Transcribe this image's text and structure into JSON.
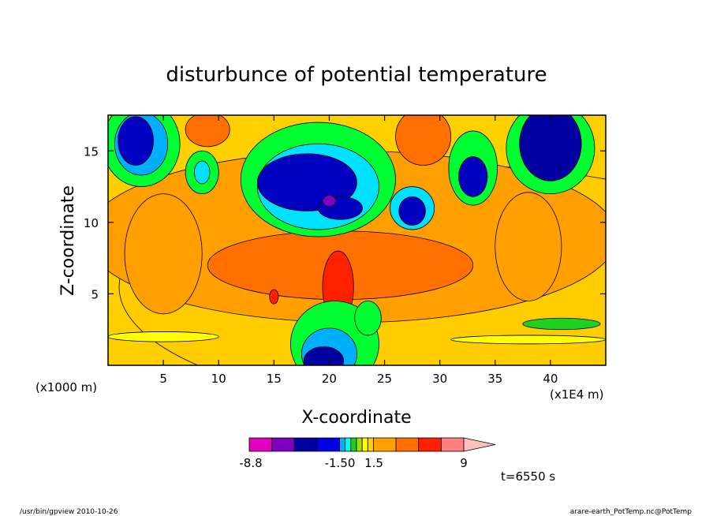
{
  "chart_data": {
    "type": "heatmap",
    "title": "disturbunce of potential temperature",
    "xlabel": "X-coordinate",
    "ylabel": "Z-coordinate",
    "x_unit": "(x1E4 m)",
    "y_unit": "(x1000 m)",
    "xlim": [
      0,
      45
    ],
    "ylim": [
      0,
      17.5
    ],
    "x_ticks": [
      5,
      10,
      15,
      20,
      25,
      30,
      35,
      40
    ],
    "y_ticks": [
      5,
      10,
      15
    ],
    "time_label": "t=6550 s",
    "colorbar": {
      "labels": [
        "-8.8",
        "-1.50",
        "1.5",
        "9"
      ],
      "colors": [
        "#e000c0",
        "#8000c0",
        "#0000a0",
        "#0000e0",
        "#00b0ff",
        "#00ffe0",
        "#20d020",
        "#a0e000",
        "#ffff00",
        "#ffd000",
        "#ffa000",
        "#ff7000",
        "#ff2000",
        "#ff8080",
        "#ffc0c0"
      ],
      "extend": "max"
    },
    "blobs": [
      {
        "cx": 31,
        "cy": 5.5,
        "rx": 30,
        "ry": 8.5,
        "color": "#ffcc00"
      },
      {
        "cx": 22,
        "cy": 9.0,
        "rx": 24,
        "ry": 6.0,
        "color": "#ffa000"
      },
      {
        "cx": 21,
        "cy": 7.0,
        "rx": 12,
        "ry": 2.4,
        "color": "#ff7000"
      },
      {
        "cx": 5,
        "cy": 7.8,
        "rx": 3.5,
        "ry": 4.2,
        "color": "#ffa000"
      },
      {
        "cx": 38,
        "cy": 8.3,
        "rx": 3.0,
        "ry": 3.8,
        "color": "#ffa000"
      },
      {
        "cx": 20.8,
        "cy": 5.5,
        "rx": 1.4,
        "ry": 2.5,
        "color": "#ff2000"
      },
      {
        "cx": 15,
        "cy": 4.8,
        "rx": 0.4,
        "ry": 0.5,
        "color": "#ff2000"
      },
      {
        "cx": 3.0,
        "cy": 15.5,
        "rx": 3.5,
        "ry": 3.0,
        "color": "#00ff30"
      },
      {
        "cx": 3.0,
        "cy": 15.5,
        "rx": 2.4,
        "ry": 2.2,
        "color": "#00b0ff"
      },
      {
        "cx": 2.5,
        "cy": 15.7,
        "rx": 1.6,
        "ry": 1.7,
        "color": "#0000c0"
      },
      {
        "cx": 40,
        "cy": 15.2,
        "rx": 4.0,
        "ry": 3.2,
        "color": "#00ff30"
      },
      {
        "cx": 40,
        "cy": 15.5,
        "rx": 2.8,
        "ry": 2.6,
        "color": "#0000a0"
      },
      {
        "cx": 19,
        "cy": 13.0,
        "rx": 7.0,
        "ry": 4.0,
        "color": "#00ff30"
      },
      {
        "cx": 19,
        "cy": 12.5,
        "rx": 5.5,
        "ry": 3.0,
        "color": "#00e0ff"
      },
      {
        "cx": 18,
        "cy": 12.8,
        "rx": 4.5,
        "ry": 2.0,
        "color": "#0000c0"
      },
      {
        "cx": 21,
        "cy": 11.0,
        "rx": 2.0,
        "ry": 0.8,
        "color": "#0000c0"
      },
      {
        "cx": 20,
        "cy": 11.5,
        "rx": 0.6,
        "ry": 0.4,
        "color": "#8000c0"
      },
      {
        "cx": 27.5,
        "cy": 11.0,
        "rx": 2.0,
        "ry": 1.5,
        "color": "#00e0ff"
      },
      {
        "cx": 27.5,
        "cy": 10.8,
        "rx": 1.2,
        "ry": 1.0,
        "color": "#0000c0"
      },
      {
        "cx": 33,
        "cy": 13.8,
        "rx": 2.2,
        "ry": 2.6,
        "color": "#00ff30"
      },
      {
        "cx": 33,
        "cy": 13.2,
        "rx": 1.3,
        "ry": 1.4,
        "color": "#0000c0"
      },
      {
        "cx": 8.5,
        "cy": 13.5,
        "rx": 1.5,
        "ry": 1.5,
        "color": "#00ff30"
      },
      {
        "cx": 8.5,
        "cy": 13.5,
        "rx": 0.7,
        "ry": 0.8,
        "color": "#00e0ff"
      },
      {
        "cx": 9,
        "cy": 16.5,
        "rx": 2.0,
        "ry": 1.2,
        "color": "#ff7000"
      },
      {
        "cx": 28.5,
        "cy": 16.0,
        "rx": 2.5,
        "ry": 2.0,
        "color": "#ff7000"
      },
      {
        "cx": 20.5,
        "cy": 1.5,
        "rx": 4.0,
        "ry": 3.0,
        "color": "#00ff30"
      },
      {
        "cx": 20.0,
        "cy": 0.8,
        "rx": 2.5,
        "ry": 1.8,
        "color": "#00b0ff"
      },
      {
        "cx": 19.5,
        "cy": 0.3,
        "rx": 1.8,
        "ry": 1.0,
        "color": "#0000a0"
      },
      {
        "cx": 23.5,
        "cy": 3.3,
        "rx": 1.2,
        "ry": 1.2,
        "color": "#00ff30"
      },
      {
        "cx": 41,
        "cy": 2.9,
        "rx": 3.5,
        "ry": 0.4,
        "color": "#20d020"
      },
      {
        "cx": 5,
        "cy": 2.0,
        "rx": 5.0,
        "ry": 0.35,
        "color": "#ffff00"
      },
      {
        "cx": 38,
        "cy": 1.8,
        "rx": 7.0,
        "ry": 0.3,
        "color": "#ffff00"
      }
    ]
  },
  "footer": {
    "left": "/usr/bin/gpview   2010-10-26",
    "right": "arare-earth_PotTemp.nc@PotTemp"
  }
}
